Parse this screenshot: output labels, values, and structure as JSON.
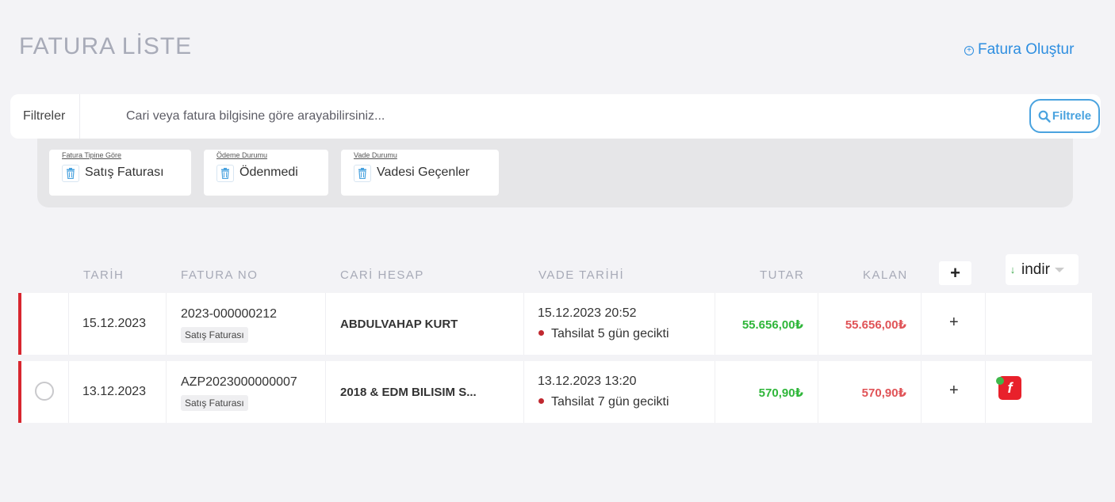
{
  "header": {
    "title": "FATURA LİSTE",
    "create_label": "Fatura Oluştur",
    "create_icon": "plus-circle-icon"
  },
  "filter_bar": {
    "label": "Filtreler",
    "search_placeholder": "Cari veya fatura bilgisine göre arayabilirsiniz...",
    "search_value": "",
    "filter_button_label": "Filtrele",
    "filter_button_icon": "search-icon"
  },
  "active_filters": [
    {
      "caption": "Fatura Tipine Göre",
      "value": "Satış Faturası"
    },
    {
      "caption": "Ödeme Durumu",
      "value": "Ödenmedi"
    },
    {
      "caption": "Vade Durumu",
      "value": "Vadesi Geçenler"
    }
  ],
  "table": {
    "columns": {
      "date": "TARİH",
      "invoice_no": "FATURA NO",
      "account": "CARİ HESAP",
      "due_date": "VADE TARİHİ",
      "amount": "TUTAR",
      "remaining": "KALAN"
    },
    "add_column_label": "+",
    "download_label": "indir",
    "rows": [
      {
        "date": "15.12.2023",
        "invoice_no": "2023-000000212",
        "type": "Satış Faturası",
        "account": "ABDULVAHAP KURT",
        "due_datetime": "15.12.2023 20:52",
        "status": "Tahsilat 5 gün gecikti",
        "amount": "55.656,00₺",
        "remaining": "55.656,00₺",
        "action": "+"
      },
      {
        "date": "13.12.2023",
        "invoice_no": "AZP2023000000007",
        "type": "Satış Faturası",
        "account": "2018 & EDM BILISIM S...",
        "due_datetime": "13.12.2023 13:20",
        "status": "Tahsilat 7 gün gecikti",
        "amount": "570,90₺",
        "remaining": "570,90₺",
        "action": "+"
      }
    ]
  },
  "colors": {
    "accent": "#2d8ee0",
    "overdue_border": "#d8262f",
    "amount_green": "#2fb63a",
    "amount_red": "#e05357",
    "efatura_icon": "#e8212b"
  }
}
